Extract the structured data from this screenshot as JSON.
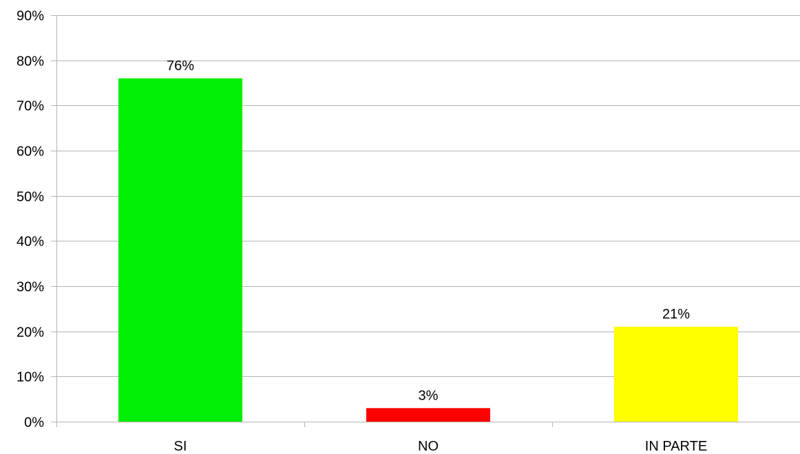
{
  "chart_data": {
    "type": "bar",
    "categories": [
      "SI",
      "NO",
      "IN PARTE"
    ],
    "values": [
      76,
      3,
      21
    ],
    "data_labels": [
      "76%",
      "3%",
      "21%"
    ],
    "colors": [
      "#00ee00",
      "#ff0000",
      "#ffff00"
    ],
    "ylim": [
      0,
      90
    ],
    "y_ticks": [
      0,
      10,
      20,
      30,
      40,
      50,
      60,
      70,
      80,
      90
    ],
    "y_tick_labels": [
      "0%",
      "10%",
      "20%",
      "30%",
      "40%",
      "50%",
      "60%",
      "70%",
      "80%",
      "90%"
    ],
    "title": "",
    "xlabel": "",
    "ylabel": "",
    "grid": true,
    "legend": "none",
    "grid_color": "#b3b3b3",
    "axis_color": "#b3b3b3"
  }
}
